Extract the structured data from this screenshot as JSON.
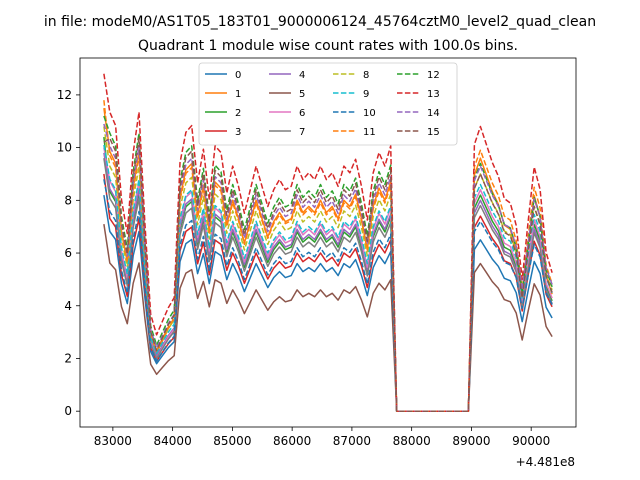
{
  "chart_data": {
    "type": "line",
    "suptitle": "in file: modeM0/AS1T05_183T01_9000006124_45764cztM0_level2_quad_clean",
    "title": "Quadrant 1 module wise count rates with 100.0s bins.",
    "xlabel": "",
    "ylabel": "",
    "x_offset_label": "+4.481e8",
    "xlim": [
      82450,
      90750
    ],
    "ylim": [
      -0.6,
      13.4
    ],
    "x_ticks": [
      83000,
      84000,
      85000,
      86000,
      87000,
      88000,
      89000,
      90000
    ],
    "x_tick_labels": [
      "83000",
      "84000",
      "85000",
      "86000",
      "87000",
      "88000",
      "89000",
      "90000"
    ],
    "y_ticks": [
      0,
      2,
      4,
      6,
      8,
      10,
      12
    ],
    "y_tick_labels": [
      "0",
      "2",
      "4",
      "6",
      "8",
      "10",
      "12"
    ],
    "legend_location": "upper center",
    "segments": [
      {
        "t0": 82850,
        "t1": 87650,
        "kind": "data"
      },
      {
        "t0": 87750,
        "t1": 88950,
        "kind": "zero"
      },
      {
        "t0": 89050,
        "t1": 90350,
        "kind": "data"
      }
    ],
    "shape_profile_seg1": [
      1.0,
      0.78,
      0.74,
      0.52,
      0.42,
      0.66,
      0.78,
      0.45,
      0.18,
      0.12,
      0.16,
      0.2,
      0.23,
      0.63,
      0.72,
      0.74,
      0.57,
      0.67,
      0.52,
      0.68,
      0.66,
      0.54,
      0.62,
      0.56,
      0.48,
      0.55,
      0.62,
      0.56,
      0.5,
      0.55,
      0.58,
      0.55,
      0.56,
      0.62,
      0.58,
      0.6,
      0.58,
      0.62,
      0.58,
      0.6,
      0.56,
      0.62,
      0.6,
      0.64,
      0.56,
      0.46,
      0.6,
      0.66,
      0.62,
      0.68
    ],
    "shape_profile_seg2": [
      0.0,
      0.0,
      0.0,
      0.0,
      0.0,
      0.0,
      0.0,
      0.0,
      0.0,
      0.0,
      0.0,
      0.0,
      0.0
    ],
    "shape_profile_seg3": [
      0.82,
      0.9,
      0.82,
      0.74,
      0.68,
      0.58,
      0.56,
      0.46,
      0.22,
      0.48,
      0.72,
      0.62,
      0.34,
      0.25
    ],
    "series": [
      {
        "name": "0",
        "color": "#1f77b4",
        "dash": "solid",
        "peak": 8.2,
        "level": 5.6,
        "trough": 1.8,
        "late": 6.5,
        "tail": 3.4
      },
      {
        "name": "1",
        "color": "#ff7f0e",
        "dash": "solid",
        "peak": 11.5,
        "level": 8.0,
        "trough": 2.2,
        "late": 9.6,
        "tail": 4.2
      },
      {
        "name": "2",
        "color": "#2ca02c",
        "dash": "solid",
        "peak": 10.4,
        "level": 6.8,
        "trough": 2.0,
        "late": 8.2,
        "tail": 4.0
      },
      {
        "name": "3",
        "color": "#d62728",
        "dash": "solid",
        "peak": 9.0,
        "level": 6.0,
        "trough": 1.9,
        "late": 7.4,
        "tail": 3.8
      },
      {
        "name": "4",
        "color": "#9467bd",
        "dash": "solid",
        "peak": 9.8,
        "level": 6.9,
        "trough": 2.1,
        "late": 8.0,
        "tail": 3.9
      },
      {
        "name": "5",
        "color": "#8c564b",
        "dash": "solid",
        "peak": 7.1,
        "level": 4.6,
        "trough": 1.4,
        "late": 5.6,
        "tail": 2.7
      },
      {
        "name": "6",
        "color": "#e377c2",
        "dash": "solid",
        "peak": 10.0,
        "level": 7.1,
        "trough": 2.0,
        "late": 8.4,
        "tail": 4.1
      },
      {
        "name": "7",
        "color": "#7f7f7f",
        "dash": "solid",
        "peak": 9.6,
        "level": 6.6,
        "trough": 2.0,
        "late": 7.8,
        "tail": 3.9
      },
      {
        "name": "8",
        "color": "#bcbd22",
        "dash": "dashed",
        "peak": 10.8,
        "level": 7.6,
        "trough": 2.3,
        "late": 9.0,
        "tail": 4.4
      },
      {
        "name": "9",
        "color": "#17becf",
        "dash": "dashed",
        "peak": 10.1,
        "level": 7.2,
        "trough": 2.2,
        "late": 8.6,
        "tail": 4.3
      },
      {
        "name": "10",
        "color": "#1f77b4",
        "dash": "dashed",
        "peak": 8.8,
        "level": 6.2,
        "trough": 1.9,
        "late": 7.2,
        "tail": 3.9
      },
      {
        "name": "11",
        "color": "#ff7f0e",
        "dash": "dashed",
        "peak": 11.8,
        "level": 7.9,
        "trough": 2.3,
        "late": 9.9,
        "tail": 4.6
      },
      {
        "name": "12",
        "color": "#2ca02c",
        "dash": "dashed",
        "peak": 11.2,
        "level": 8.6,
        "trough": 2.5,
        "late": 9.4,
        "tail": 4.5
      },
      {
        "name": "13",
        "color": "#d62728",
        "dash": "dashed",
        "peak": 12.8,
        "level": 9.3,
        "trough": 2.9,
        "late": 10.8,
        "tail": 5.0
      },
      {
        "name": "14",
        "color": "#9467bd",
        "dash": "dashed",
        "peak": 10.9,
        "level": 8.2,
        "trough": 2.4,
        "late": 9.3,
        "tail": 4.6
      },
      {
        "name": "15",
        "color": "#8c564b",
        "dash": "dashed",
        "peak": 10.2,
        "level": 8.4,
        "trough": 2.3,
        "late": 9.0,
        "tail": 4.3
      }
    ]
  }
}
